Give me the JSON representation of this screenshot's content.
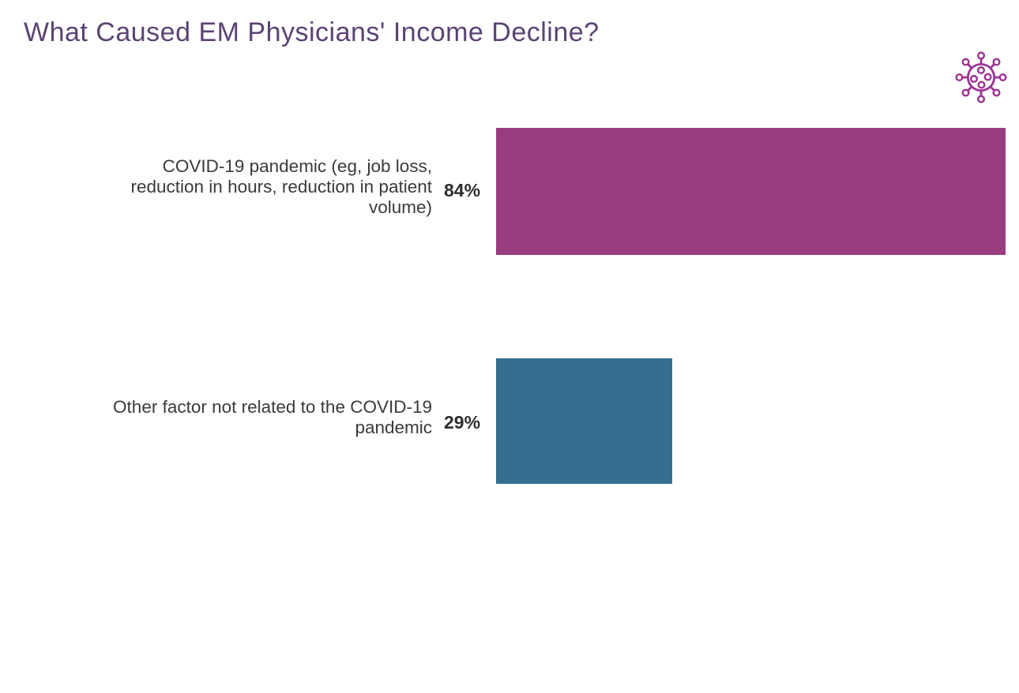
{
  "header": {
    "title": "What Caused EM Physicians' Income Decline?",
    "title_color": "#5b4374",
    "virus_icon_color": "#9c3595"
  },
  "chart_data": {
    "type": "bar",
    "orientation": "horizontal",
    "title": "What Caused EM Physicians' Income Decline?",
    "categories": [
      "COVID-19 pandemic (eg, job loss, reduction in hours, reduction in patient volume)",
      "Other factor not related to the COVID-19 pandemic"
    ],
    "categories_lines": [
      [
        "COVID-19 pandemic (eg, job loss,",
        "reduction in hours, reduction in patient",
        "volume)"
      ],
      [
        "Other factor not related to the COVID-19",
        "pandemic"
      ]
    ],
    "values": [
      84,
      29
    ],
    "value_labels": [
      "84%",
      "29%"
    ],
    "colors": [
      "#9a3d80",
      "#356e8e"
    ],
    "xlabel": "",
    "ylabel": "",
    "xlim": [
      0,
      84
    ],
    "grid": false,
    "legend": false,
    "unit": "%"
  }
}
